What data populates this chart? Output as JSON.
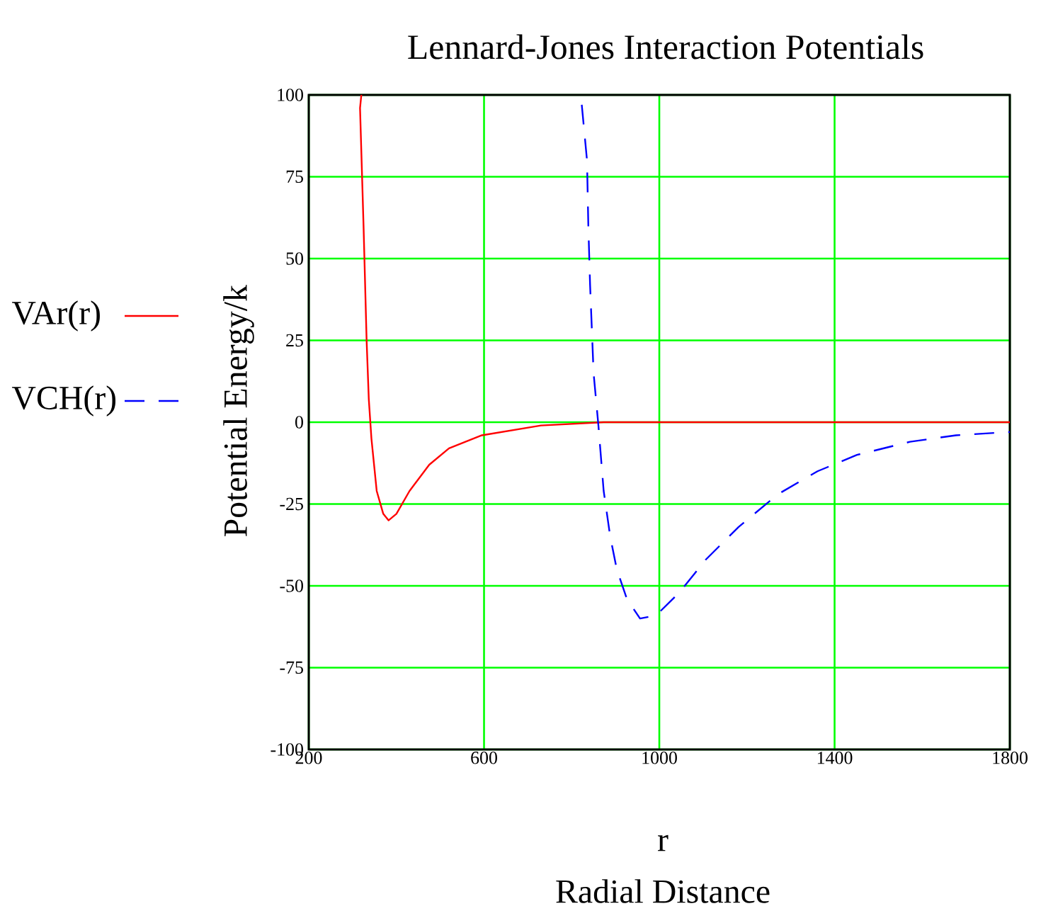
{
  "chart_data": {
    "type": "line",
    "title": "Lennard-Jones Interaction Potentials",
    "xlabel": "r",
    "ylabel": "Potential Energy/k",
    "annotations": [
      "Radial Distance"
    ],
    "series": [
      {
        "name": "VAr(r)",
        "color": "#ff0000",
        "line_style": "solid",
        "x": [
          320,
          317,
          325,
          332,
          337,
          343,
          355,
          370,
          382,
          400,
          430,
          475,
          520,
          595,
          730,
          873,
          1800
        ],
        "values": [
          100,
          96,
          60,
          25,
          7,
          -5,
          -21,
          -28,
          -30,
          -28,
          -21,
          -13,
          -8,
          -4,
          -1,
          0,
          0
        ]
      },
      {
        "name": "VCH(r)",
        "color": "#0000ff",
        "line_style": "dashed",
        "x": [
          823,
          835,
          838,
          842,
          850,
          861,
          873,
          888,
          903,
          926,
          956,
          993,
          1046,
          1106,
          1181,
          1271,
          1361,
          1451,
          1572,
          1677,
          1800
        ],
        "values": [
          97,
          80,
          60,
          42,
          15,
          -1,
          -21,
          -35,
          -45,
          -54,
          -60,
          -59,
          -52,
          -42,
          -32,
          -22,
          -15,
          -10,
          -6,
          -4,
          -3
        ]
      }
    ],
    "xlim": [
      200,
      1800
    ],
    "xticks": [
      200,
      600,
      1000,
      1400,
      1800
    ],
    "ylim": [
      -100,
      100
    ],
    "yticks": [
      -100,
      -75,
      -50,
      -25,
      0,
      25,
      50,
      75,
      100
    ],
    "grid": true,
    "legend": "left",
    "marker": "none"
  }
}
